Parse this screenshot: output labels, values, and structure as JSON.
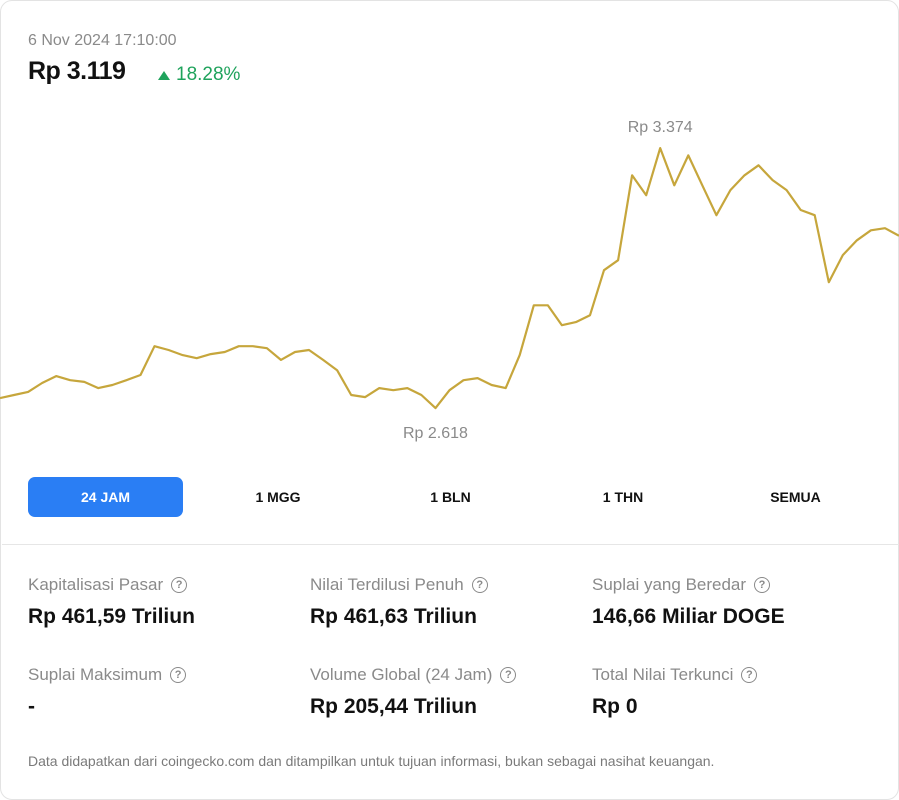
{
  "header": {
    "timestamp": "6 Nov 2024 17:10:00",
    "price": "Rp 3.119",
    "change": "18.28%"
  },
  "chart_data": {
    "type": "line",
    "color": "#c6a63c",
    "high_label": "Rp 3.374",
    "low_label": "Rp 2.618",
    "ylim": [
      2496,
      3514
    ],
    "values": [
      2647,
      2656,
      2665,
      2691,
      2711,
      2699,
      2694,
      2676,
      2685,
      2699,
      2714,
      2798,
      2787,
      2772,
      2763,
      2775,
      2781,
      2798,
      2798,
      2792,
      2758,
      2781,
      2787,
      2758,
      2728,
      2656,
      2650,
      2676,
      2670,
      2676,
      2656,
      2618,
      2670,
      2699,
      2705,
      2685,
      2676,
      2772,
      2917,
      2917,
      2859,
      2868,
      2888,
      3019,
      3048,
      3295,
      3237,
      3374,
      3266,
      3353,
      3266,
      3179,
      3252,
      3295,
      3324,
      3281,
      3252,
      3194,
      3179,
      2984,
      3063,
      3106,
      3135,
      3141,
      3119
    ]
  },
  "tabs": [
    "24 JAM",
    "1 MGG",
    "1 BLN",
    "1 THN",
    "SEMUA"
  ],
  "stats": [
    {
      "label": "Kapitalisasi Pasar",
      "value": "Rp 461,59 Triliun"
    },
    {
      "label": "Nilai Terdilusi Penuh",
      "value": "Rp 461,63 Triliun"
    },
    {
      "label": "Suplai yang Beredar",
      "value": "146,66 Miliar DOGE"
    },
    {
      "label": "Suplai Maksimum",
      "value": "-"
    },
    {
      "label": "Volume Global (24 Jam)",
      "value": "Rp 205,44 Triliun"
    },
    {
      "label": "Total Nilai Terkunci",
      "value": "Rp 0"
    }
  ],
  "footer": "Data didapatkan dari coingecko.com dan ditampilkan untuk tujuan informasi, bukan sebagai nasihat keuangan."
}
